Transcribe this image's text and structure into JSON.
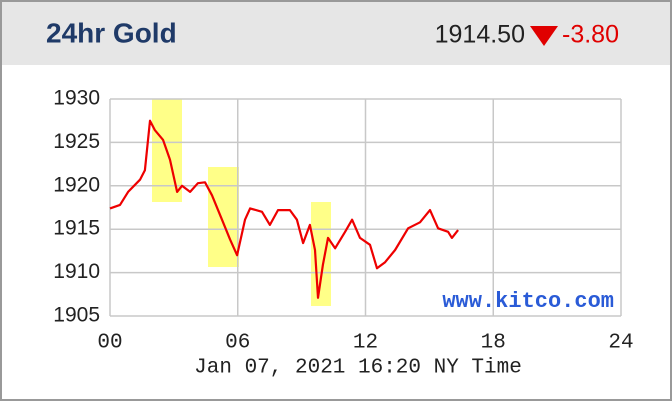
{
  "header": {
    "title": "24hr Gold",
    "price": "1914.50",
    "change": "-3.80"
  },
  "chart_data": {
    "type": "line",
    "xlabel": "Jan 07, 2021 16:20 NY Time",
    "watermark": "www.kitco.com",
    "color": "#ee0000",
    "x": [
      0,
      0.47,
      0.85,
      1.41,
      1.64,
      1.88,
      2.11,
      2.49,
      2.82,
      3.15,
      3.38,
      3.76,
      4.13,
      4.46,
      4.79,
      5.26,
      5.64,
      5.97,
      6.34,
      6.58,
      7.14,
      7.51,
      7.89,
      8.45,
      8.78,
      9.07,
      9.39,
      9.63,
      9.77,
      10.0,
      10.24,
      10.57,
      11.04,
      11.37,
      11.74,
      12.21,
      12.54,
      12.92,
      13.39,
      14.0,
      14.56,
      15.03,
      15.41,
      15.88,
      16.06,
      16.35
    ],
    "values": [
      1917.4,
      1917.8,
      1919.3,
      1920.7,
      1921.8,
      1927.5,
      1926.4,
      1925.3,
      1923.0,
      1919.3,
      1920.0,
      1919.3,
      1920.3,
      1920.4,
      1918.9,
      1916.1,
      1913.8,
      1912.0,
      1916.1,
      1917.4,
      1917.0,
      1915.5,
      1917.2,
      1917.2,
      1916.1,
      1913.4,
      1915.5,
      1912.6,
      1907.1,
      1910.9,
      1914.0,
      1912.8,
      1914.7,
      1916.1,
      1914.0,
      1913.2,
      1910.5,
      1911.2,
      1912.6,
      1915.1,
      1915.8,
      1917.2,
      1915.1,
      1914.7,
      1914.0,
      1914.9
    ],
    "xlim": [
      0,
      24
    ],
    "xticks": [
      {
        "value": 0,
        "label": "00"
      },
      {
        "value": 6,
        "label": "06"
      },
      12,
      18,
      24
    ],
    "ylim": [
      1905,
      1930
    ],
    "yticks": [
      1905,
      1910,
      1915,
      1920,
      1925,
      1930
    ],
    "grid": true
  }
}
